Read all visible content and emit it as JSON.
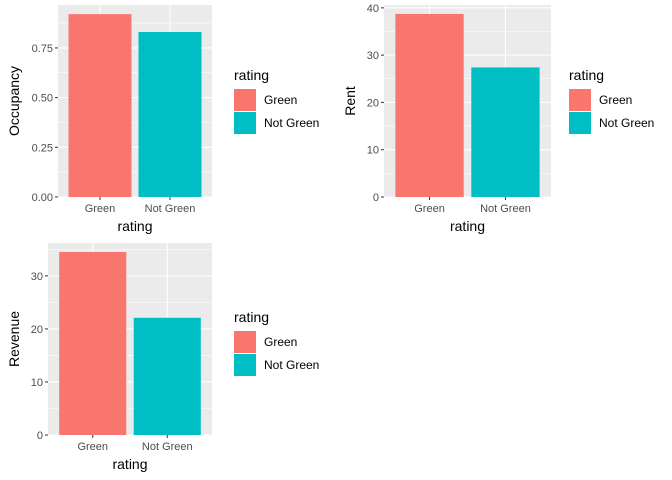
{
  "legend_title": "rating",
  "colors": {
    "Green": "#F8766D",
    "Not Green": "#00BFC4",
    "panel": "#EBEBEB",
    "grid": "#FFFFFF"
  },
  "chart_data": [
    {
      "type": "bar",
      "categories": [
        "Green",
        "Not Green"
      ],
      "values": [
        0.92,
        0.83
      ],
      "xlabel": "rating",
      "ylabel": "Occupancy",
      "ylim": [
        0,
        0.966
      ],
      "yticks": [
        0,
        0.25,
        0.5,
        0.75
      ],
      "ytick_labels": [
        "0.00",
        "0.25",
        "0.50",
        "0.75"
      ],
      "legend": {
        "title": "rating",
        "entries": [
          "Green",
          "Not Green"
        ]
      },
      "grid": true
    },
    {
      "type": "bar",
      "categories": [
        "Green",
        "Not Green"
      ],
      "values": [
        38.7,
        27.4
      ],
      "xlabel": "rating",
      "ylabel": "Rent",
      "ylim": [
        0,
        40.6
      ],
      "yticks": [
        0,
        10,
        20,
        30,
        40
      ],
      "ytick_labels": [
        "0",
        "10",
        "20",
        "30",
        "40"
      ],
      "legend": {
        "title": "rating",
        "entries": [
          "Green",
          "Not Green"
        ]
      },
      "grid": true
    },
    {
      "type": "bar",
      "categories": [
        "Green",
        "Not Green"
      ],
      "values": [
        34.5,
        22.1
      ],
      "xlabel": "rating",
      "ylabel": "Revenue",
      "ylim": [
        0,
        36.2
      ],
      "yticks": [
        0,
        10,
        20,
        30
      ],
      "ytick_labels": [
        "0",
        "10",
        "20",
        "30"
      ],
      "legend": {
        "title": "rating",
        "entries": [
          "Green",
          "Not Green"
        ]
      },
      "grid": true
    }
  ]
}
